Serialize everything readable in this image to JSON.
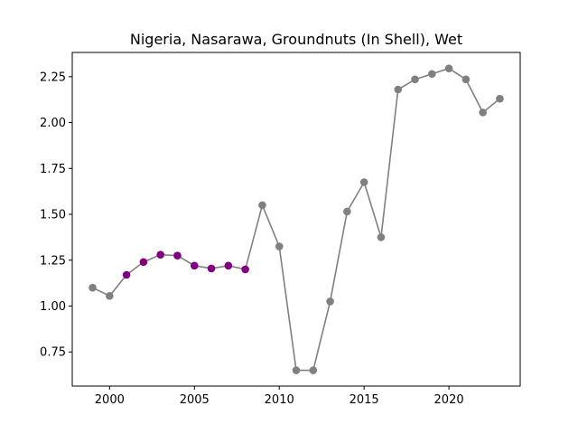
{
  "chart_data": {
    "type": "line",
    "title": "Nigeria, Nasarawa, Groundnuts (In Shell), Wet",
    "xlabel": "",
    "ylabel": "",
    "xlim": [
      1997.8,
      2024.2
    ],
    "ylim": [
      0.564,
      2.382
    ],
    "x_ticks": [
      2000,
      2005,
      2010,
      2015,
      2020
    ],
    "y_ticks": [
      0.75,
      1.0,
      1.25,
      1.5,
      1.75,
      2.0,
      2.25
    ],
    "y_tick_labels": [
      "0.75",
      "1.00",
      "1.25",
      "1.50",
      "1.75",
      "2.00",
      "2.25"
    ],
    "grid": false,
    "line_color": "#808080",
    "series": [
      {
        "x": [
          1999,
          2000,
          2001,
          2002,
          2003,
          2004,
          2005,
          2006,
          2007,
          2008,
          2009,
          2010,
          2011,
          2012,
          2013,
          2014,
          2015,
          2016,
          2017,
          2018,
          2019,
          2020,
          2021,
          2022,
          2023
        ],
        "y": [
          1.1,
          1.055,
          1.17,
          1.24,
          1.28,
          1.275,
          1.22,
          1.205,
          1.22,
          1.2,
          1.55,
          1.325,
          0.65,
          0.65,
          1.025,
          1.515,
          1.675,
          1.375,
          2.18,
          2.235,
          2.265,
          2.295,
          2.235,
          2.055,
          2.13
        ],
        "colors": [
          "#808080",
          "#808080",
          "#800080",
          "#800080",
          "#800080",
          "#800080",
          "#800080",
          "#800080",
          "#800080",
          "#800080",
          "#808080",
          "#808080",
          "#808080",
          "#808080",
          "#808080",
          "#808080",
          "#808080",
          "#808080",
          "#808080",
          "#808080",
          "#808080",
          "#808080",
          "#808080",
          "#808080",
          "#808080"
        ]
      }
    ]
  }
}
